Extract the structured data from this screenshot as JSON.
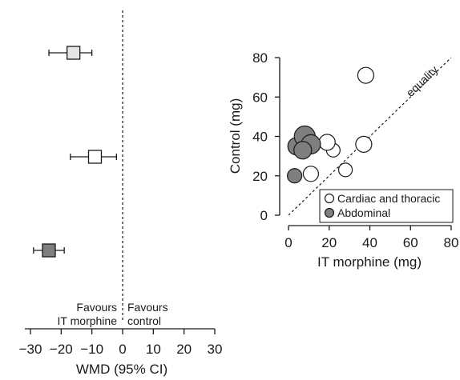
{
  "chart_data": [
    {
      "type": "forest",
      "xlabel": "WMD (95% CI)",
      "xlim": [
        -30,
        30
      ],
      "xticks": [
        "−30",
        "−20",
        "−10",
        "0",
        "10",
        "20",
        "30"
      ],
      "xtick_values": [
        -30,
        -20,
        -10,
        0,
        10,
        20,
        30
      ],
      "annotation_left": [
        "Favours",
        "IT morphine"
      ],
      "annotation_right": [
        "Favours",
        "control"
      ],
      "estimates": [
        {
          "wmd": -16,
          "ci_low": -24,
          "ci_high": -10,
          "fill": "#e6e6e6"
        },
        {
          "wmd": -9,
          "ci_low": -17,
          "ci_high": -2,
          "fill": "#ffffff"
        },
        {
          "wmd": -24,
          "ci_low": -29,
          "ci_high": -19,
          "fill": "#7f7f7f"
        }
      ]
    },
    {
      "type": "scatter",
      "xlabel": "IT morphine (mg)",
      "ylabel": "Control (mg)",
      "xlim": [
        0,
        80
      ],
      "ylim": [
        0,
        80
      ],
      "xticks": [
        "0",
        "20",
        "40",
        "60",
        "80"
      ],
      "xtick_values": [
        0,
        20,
        40,
        60,
        80
      ],
      "yticks": [
        "0",
        "20",
        "40",
        "60",
        "80"
      ],
      "ytick_values": [
        0,
        20,
        40,
        60,
        80
      ],
      "equality_label": "equality",
      "legend_position": "bottom-right",
      "series": [
        {
          "name": "Cardiac and thoracic",
          "color": "#ffffff",
          "points": [
            {
              "x": 38,
              "y": 71,
              "size": 1.0
            },
            {
              "x": 37,
              "y": 36,
              "size": 1.0
            },
            {
              "x": 28,
              "y": 23,
              "size": 0.85
            },
            {
              "x": 22,
              "y": 33,
              "size": 0.85
            },
            {
              "x": 19,
              "y": 37,
              "size": 1.0
            },
            {
              "x": 11,
              "y": 21,
              "size": 0.95
            }
          ]
        },
        {
          "name": "Abdominal",
          "color": "#7f7f7f",
          "points": [
            {
              "x": 3,
              "y": 20,
              "size": 0.9
            },
            {
              "x": 4,
              "y": 35,
              "size": 1.1
            },
            {
              "x": 8,
              "y": 40,
              "size": 1.3
            },
            {
              "x": 11,
              "y": 36,
              "size": 1.2
            },
            {
              "x": 7,
              "y": 33,
              "size": 1.1
            }
          ]
        }
      ]
    }
  ]
}
